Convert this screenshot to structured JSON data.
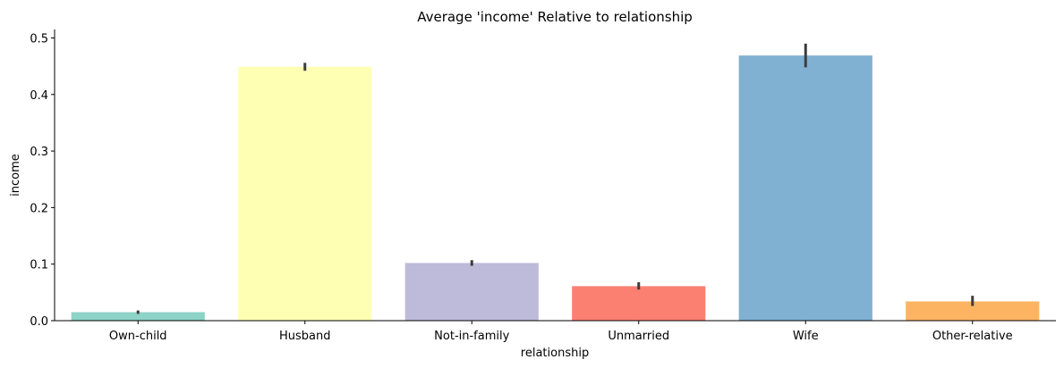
{
  "chart_data": {
    "type": "bar",
    "title": "Average 'income' Relative to relationship",
    "xlabel": "relationship",
    "ylabel": "income",
    "categories": [
      "Own-child",
      "Husband",
      "Not-in-family",
      "Unmarried",
      "Wife",
      "Other-relative"
    ],
    "values": [
      0.015,
      0.449,
      0.102,
      0.061,
      0.469,
      0.034
    ],
    "error_low": [
      0.012,
      0.442,
      0.097,
      0.055,
      0.448,
      0.026
    ],
    "error_high": [
      0.018,
      0.456,
      0.107,
      0.068,
      0.49,
      0.044
    ],
    "colors": [
      "#8dd3c7",
      "#ffffb3",
      "#bebada",
      "#fb8072",
      "#80b1d3",
      "#fdb462"
    ],
    "ylim": [
      0,
      0.515
    ],
    "yticks": [
      0.0,
      0.1,
      0.2,
      0.3,
      0.4,
      0.5
    ],
    "ytick_labels": [
      "0.0",
      "0.1",
      "0.2",
      "0.3",
      "0.4",
      "0.5"
    ],
    "grid": false,
    "legend": "none"
  }
}
